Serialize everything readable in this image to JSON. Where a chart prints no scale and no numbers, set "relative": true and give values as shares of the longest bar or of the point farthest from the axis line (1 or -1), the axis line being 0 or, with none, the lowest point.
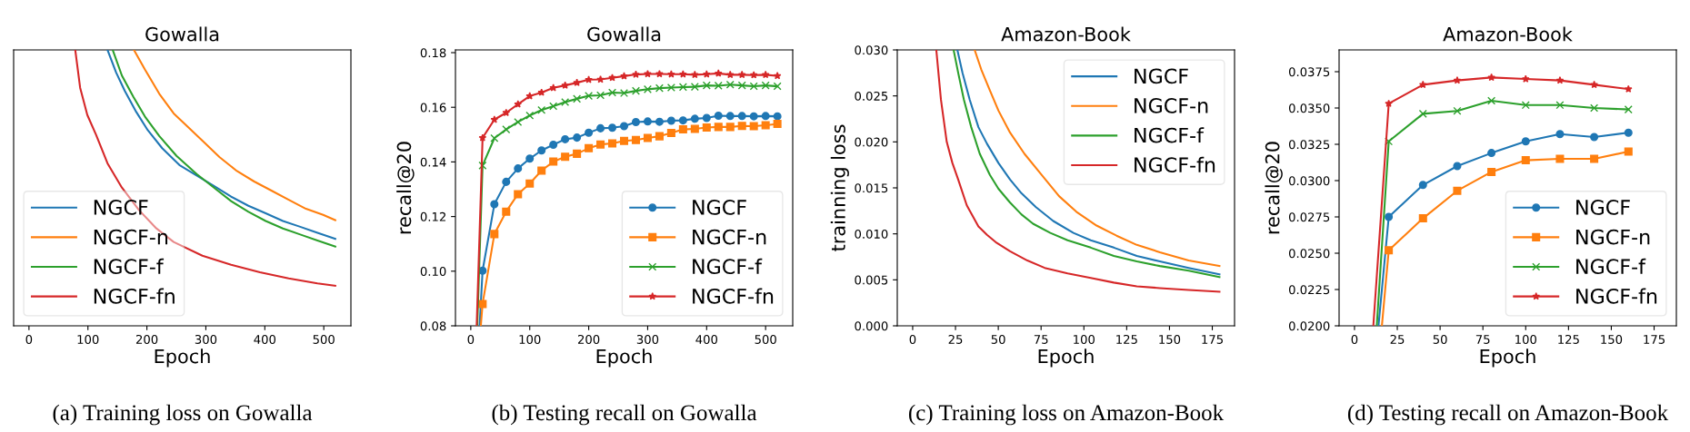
{
  "chart_data": [
    {
      "type": "line",
      "title": "Gowalla",
      "xlabel": "Epoch",
      "annotations": [
        "(a) Training loss on Gowalla"
      ],
      "relative": true,
      "xlim": [
        -26,
        546
      ],
      "xticks": [
        0,
        100,
        200,
        300,
        400,
        500
      ],
      "legend": "lower left",
      "series": [
        {
          "name": "NGCF",
          "color": "#1f77b4",
          "x": [
            133.2,
            147.8,
            162.4,
            182,
            201.5,
            225.9,
            255.1,
            284.4,
            313.7,
            342.9,
            372.2,
            401.5,
            430.7,
            460,
            489.3,
            519.5
          ],
          "values": [
            1.0,
            0.918,
            0.852,
            0.775,
            0.709,
            0.644,
            0.583,
            0.545,
            0.507,
            0.468,
            0.435,
            0.408,
            0.38,
            0.359,
            0.337,
            0.315
          ]
        },
        {
          "name": "NGCF-n",
          "color": "#ff7f0e",
          "x": [
            178,
            196.6,
            221,
            245.4,
            269.8,
            294.1,
            323.4,
            352.7,
            382,
            411.2,
            440.5,
            469.8,
            499,
            519.5
          ],
          "values": [
            1.0,
            0.929,
            0.841,
            0.77,
            0.72,
            0.671,
            0.611,
            0.561,
            0.523,
            0.49,
            0.457,
            0.424,
            0.402,
            0.383
          ]
        },
        {
          "name": "NGCF-f",
          "color": "#2ca02c",
          "x": [
            142,
            157.6,
            177.1,
            196.6,
            221,
            250.2,
            284.4,
            313.7,
            342.9,
            372.2,
            401.5,
            430.7,
            460,
            489.3,
            519.5
          ],
          "values": [
            1.0,
            0.907,
            0.83,
            0.759,
            0.688,
            0.616,
            0.55,
            0.501,
            0.452,
            0.413,
            0.38,
            0.353,
            0.331,
            0.309,
            0.287
          ]
        },
        {
          "name": "NGCF-fn",
          "color": "#d62728",
          "x": [
            78.5,
            86.8,
            99,
            113.7,
            133.2,
            157.6,
            186.8,
            216.1,
            245.4,
            294.1,
            342.9,
            391.7,
            440.5,
            489.3,
            519.5
          ],
          "values": [
            1.0,
            0.863,
            0.764,
            0.693,
            0.589,
            0.501,
            0.419,
            0.353,
            0.304,
            0.254,
            0.221,
            0.194,
            0.172,
            0.154,
            0.145
          ]
        }
      ]
    },
    {
      "type": "line",
      "title": "Gowalla",
      "xlabel": "Epoch",
      "ylabel": "recall@20",
      "annotations": [
        "(b) Testing recall on Gowalla"
      ],
      "xlim": [
        -26,
        546
      ],
      "xticks": [
        0,
        100,
        200,
        300,
        400,
        500
      ],
      "ylim": [
        0.08,
        0.181
      ],
      "yticks": [
        0.08,
        {
          "value": 0.1,
          "label": "0.10"
        },
        0.12,
        0.14,
        0.16,
        0.18
      ],
      "legend": "lower right",
      "series": [
        {
          "name": "NGCF",
          "color": "#1f77b4",
          "marker": "circle",
          "x": [
            15,
            20,
            40,
            60,
            80,
            100,
            120,
            140,
            160,
            180,
            200,
            220,
            240,
            260,
            280,
            300,
            320,
            340,
            360,
            380,
            400,
            420,
            440,
            460,
            480,
            500,
            520
          ],
          "values": [
            0.08,
            0.1002,
            0.1245,
            0.1327,
            0.1376,
            0.1412,
            0.1442,
            0.1463,
            0.1483,
            0.1489,
            0.1507,
            0.1523,
            0.1525,
            0.1531,
            0.1546,
            0.1548,
            0.1547,
            0.1551,
            0.1552,
            0.1558,
            0.1561,
            0.1569,
            0.1568,
            0.1568,
            0.1567,
            0.1568,
            0.1567
          ]
        },
        {
          "name": "NGCF-n",
          "color": "#ff7f0e",
          "marker": "square",
          "x": [
            17,
            20,
            40,
            60,
            80,
            100,
            120,
            140,
            160,
            180,
            200,
            220,
            240,
            260,
            280,
            300,
            320,
            340,
            360,
            380,
            400,
            420,
            440,
            460,
            480,
            500,
            520
          ],
          "values": [
            0.08,
            0.088,
            0.1136,
            0.1218,
            0.1282,
            0.1321,
            0.1368,
            0.1401,
            0.1419,
            0.143,
            0.145,
            0.1464,
            0.1468,
            0.1477,
            0.148,
            0.1488,
            0.1494,
            0.1506,
            0.1519,
            0.1521,
            0.1526,
            0.1528,
            0.1528,
            0.1532,
            0.1531,
            0.1534,
            0.1539
          ]
        },
        {
          "name": "NGCF-f",
          "color": "#2ca02c",
          "marker": "cross",
          "x": [
            11,
            20,
            40,
            60,
            80,
            100,
            120,
            140,
            160,
            180,
            200,
            220,
            240,
            260,
            280,
            300,
            320,
            340,
            360,
            380,
            400,
            420,
            440,
            460,
            480,
            500,
            520
          ],
          "values": [
            0.08,
            0.1387,
            0.1487,
            0.1519,
            0.1546,
            0.157,
            0.159,
            0.1604,
            0.1619,
            0.1631,
            0.1642,
            0.1644,
            0.1654,
            0.1652,
            0.166,
            0.1666,
            0.167,
            0.1672,
            0.1674,
            0.1675,
            0.168,
            0.1679,
            0.1683,
            0.168,
            0.1677,
            0.168,
            0.1677
          ]
        },
        {
          "name": "NGCF-fn",
          "color": "#d62728",
          "marker": "star",
          "x": [
            10,
            20,
            40,
            60,
            80,
            100,
            120,
            140,
            160,
            180,
            200,
            220,
            240,
            260,
            280,
            300,
            320,
            340,
            360,
            380,
            400,
            420,
            440,
            460,
            480,
            500,
            520
          ],
          "values": [
            0.08,
            0.1488,
            0.1555,
            0.158,
            0.1611,
            0.1641,
            0.1654,
            0.1671,
            0.168,
            0.169,
            0.1701,
            0.1702,
            0.1708,
            0.1714,
            0.172,
            0.1722,
            0.1722,
            0.1721,
            0.1721,
            0.1719,
            0.1721,
            0.1724,
            0.1719,
            0.1719,
            0.1718,
            0.1719,
            0.1715
          ]
        }
      ]
    },
    {
      "type": "line",
      "title": "Amazon-Book",
      "xlabel": "Epoch",
      "ylabel": "trainning loss",
      "annotations": [
        "(c) Training loss on Amazon-Book"
      ],
      "xlim": [
        -9,
        188
      ],
      "xticks": [
        0,
        25,
        50,
        75,
        100,
        125,
        150,
        175
      ],
      "ylim": [
        0,
        0.03
      ],
      "yticks": [
        {
          "value": 0,
          "label": "0.000"
        },
        0.005,
        {
          "value": 0.01,
          "label": "0.010"
        },
        0.015,
        {
          "value": 0.02,
          "label": "0.020"
        },
        0.025,
        {
          "value": 0.03,
          "label": "0.030"
        }
      ],
      "legend": "upper right",
      "series": [
        {
          "name": "NGCF",
          "color": "#1f77b4",
          "x": [
            26.1,
            29.1,
            33.3,
            38.4,
            43.4,
            50.1,
            56.9,
            63.6,
            72,
            82.1,
            93.9,
            104,
            117.5,
            130.9,
            144.4,
            161.2,
            179.2
          ],
          "values": [
            0.03,
            0.0275,
            0.0246,
            0.0216,
            0.0198,
            0.0177,
            0.0159,
            0.0144,
            0.0129,
            0.0114,
            0.0101,
            0.0093,
            0.0085,
            0.0076,
            0.007,
            0.0063,
            0.0056
          ]
        },
        {
          "name": "NGCF-n",
          "color": "#ff7f0e",
          "x": [
            36.2,
            40,
            45.1,
            50.1,
            56.9,
            65.3,
            75.4,
            85.5,
            95.6,
            107.4,
            119.1,
            130.9,
            144.4,
            161.2,
            179.2
          ],
          "values": [
            0.03,
            0.0279,
            0.0256,
            0.0234,
            0.021,
            0.0187,
            0.0164,
            0.0141,
            0.0124,
            0.0109,
            0.0098,
            0.0088,
            0.008,
            0.0071,
            0.0065
          ]
        },
        {
          "name": "NGCF-f",
          "color": "#2ca02c",
          "x": [
            23.9,
            26.6,
            29.9,
            34.2,
            39.2,
            45.1,
            50.1,
            56.9,
            63.6,
            70.3,
            80.4,
            90.5,
            104,
            117.5,
            130.9,
            144.4,
            161.2,
            179.2
          ],
          "values": [
            0.03,
            0.0275,
            0.0246,
            0.0216,
            0.0187,
            0.0164,
            0.0149,
            0.0134,
            0.0121,
            0.0111,
            0.0101,
            0.0093,
            0.0085,
            0.0076,
            0.007,
            0.0065,
            0.006,
            0.0053
          ]
        },
        {
          "name": "NGCF-fn",
          "color": "#d62728",
          "x": [
            13.8,
            16.5,
            19.9,
            23.2,
            26.6,
            31.6,
            38.4,
            43.4,
            48.5,
            56.9,
            67,
            77.1,
            90.5,
            104,
            117.5,
            130.9,
            144.4,
            161.2,
            179.2
          ],
          "values": [
            0.03,
            0.0246,
            0.02,
            0.0177,
            0.0159,
            0.0131,
            0.0108,
            0.0099,
            0.0091,
            0.0081,
            0.0071,
            0.0063,
            0.0057,
            0.0052,
            0.0047,
            0.0043,
            0.0041,
            0.0039,
            0.0037
          ]
        }
      ]
    },
    {
      "type": "line",
      "title": "Amazon-Book",
      "xlabel": "Epoch",
      "ylabel": "recall@20",
      "annotations": [
        "(d) Testing recall on Amazon-Book"
      ],
      "xlim": [
        -9,
        188
      ],
      "xticks": [
        0,
        25,
        50,
        75,
        100,
        125,
        150,
        175
      ],
      "ylim": [
        0.02,
        0.039
      ],
      "yticks": [
        {
          "value": 0.02,
          "label": "0.0200"
        },
        0.0225,
        {
          "value": 0.025,
          "label": "0.0250"
        },
        0.0275,
        {
          "value": 0.03,
          "label": "0.0300"
        },
        0.0325,
        {
          "value": 0.035,
          "label": "0.0350"
        },
        0.0375
      ],
      "legend": "lower right",
      "series": [
        {
          "name": "NGCF",
          "color": "#1f77b4",
          "marker": "circle",
          "x": [
            14,
            20,
            40,
            60,
            80,
            100,
            120,
            140,
            160
          ],
          "values": [
            0.02,
            0.0275,
            0.0297,
            0.031,
            0.0319,
            0.0327,
            0.0332,
            0.033,
            0.0333
          ]
        },
        {
          "name": "NGCF-n",
          "color": "#ff7f0e",
          "marker": "square",
          "x": [
            16,
            20,
            40,
            60,
            80,
            100,
            120,
            140,
            160
          ],
          "values": [
            0.02,
            0.0252,
            0.0274,
            0.0293,
            0.0306,
            0.0314,
            0.0315,
            0.0315,
            0.032
          ]
        },
        {
          "name": "NGCF-f",
          "color": "#2ca02c",
          "marker": "cross",
          "x": [
            13,
            20,
            40,
            60,
            80,
            100,
            120,
            140,
            160
          ],
          "values": [
            0.02,
            0.0327,
            0.0346,
            0.0348,
            0.0355,
            0.0352,
            0.0352,
            0.035,
            0.0349
          ]
        },
        {
          "name": "NGCF-fn",
          "color": "#d62728",
          "marker": "star",
          "x": [
            11,
            20,
            40,
            60,
            80,
            100,
            120,
            140,
            160
          ],
          "values": [
            0.02,
            0.0353,
            0.0366,
            0.0369,
            0.0371,
            0.037,
            0.0369,
            0.0366,
            0.0363
          ]
        }
      ]
    }
  ]
}
